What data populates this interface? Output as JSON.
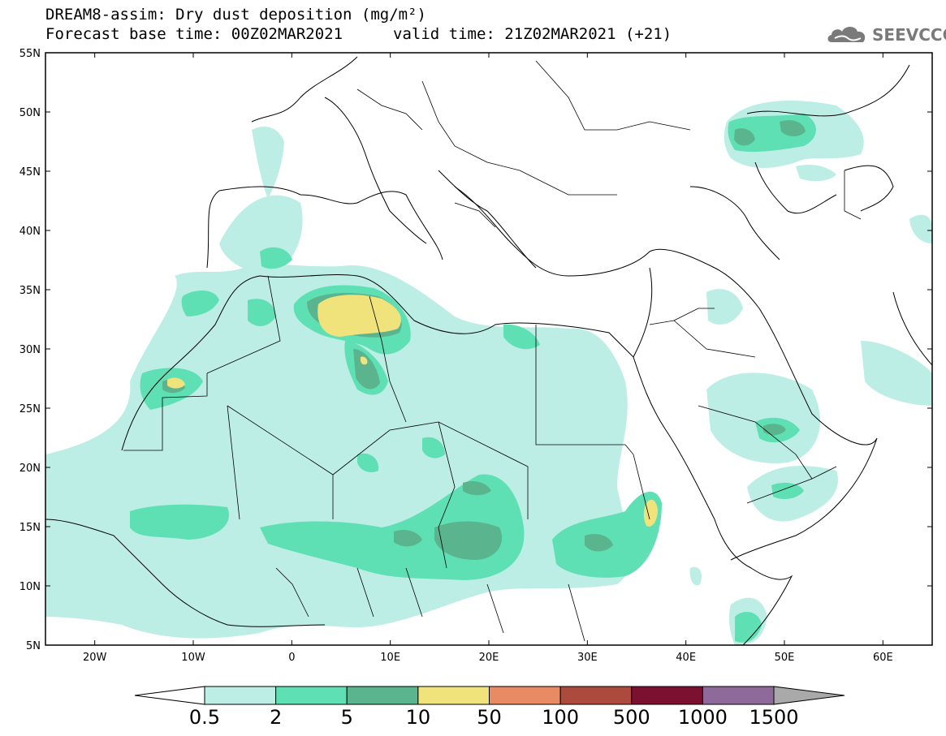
{
  "title": {
    "line1": "DREAM8-assim: Dry dust deposition (mg/m²)",
    "line2": "Forecast base time: 00Z02MAR2021",
    "line3": "valid time: 21Z02MAR2021 (+21)"
  },
  "logo": {
    "text": "SEEVCCC",
    "icon": "cloud-icon"
  },
  "map": {
    "lon_range": [
      -25,
      65
    ],
    "lat_range": [
      5,
      55
    ],
    "lat_ticks": [
      "5N",
      "10N",
      "15N",
      "20N",
      "25N",
      "30N",
      "35N",
      "40N",
      "45N",
      "50N",
      "55N"
    ],
    "lon_ticks": [
      "20W",
      "10W",
      "0",
      "10E",
      "20E",
      "30E",
      "40E",
      "50E",
      "60E"
    ]
  },
  "colorbar": {
    "labels": [
      "0.5",
      "2",
      "5",
      "10",
      "50",
      "100",
      "500",
      "1000",
      "1500"
    ],
    "colors": [
      "#bdeee6",
      "#5fe0b4",
      "#5ab58f",
      "#f1e37b",
      "#e88a64",
      "#ad4a3e",
      "#7b1030",
      "#8d6a9a"
    ],
    "under_color": "#ffffff",
    "over_color": "#a9a9a9"
  },
  "palette": {
    "light": "#bdeee6",
    "mid": "#5fe0b4",
    "dark": "#5ab58f",
    "yellow": "#f1e37b"
  }
}
